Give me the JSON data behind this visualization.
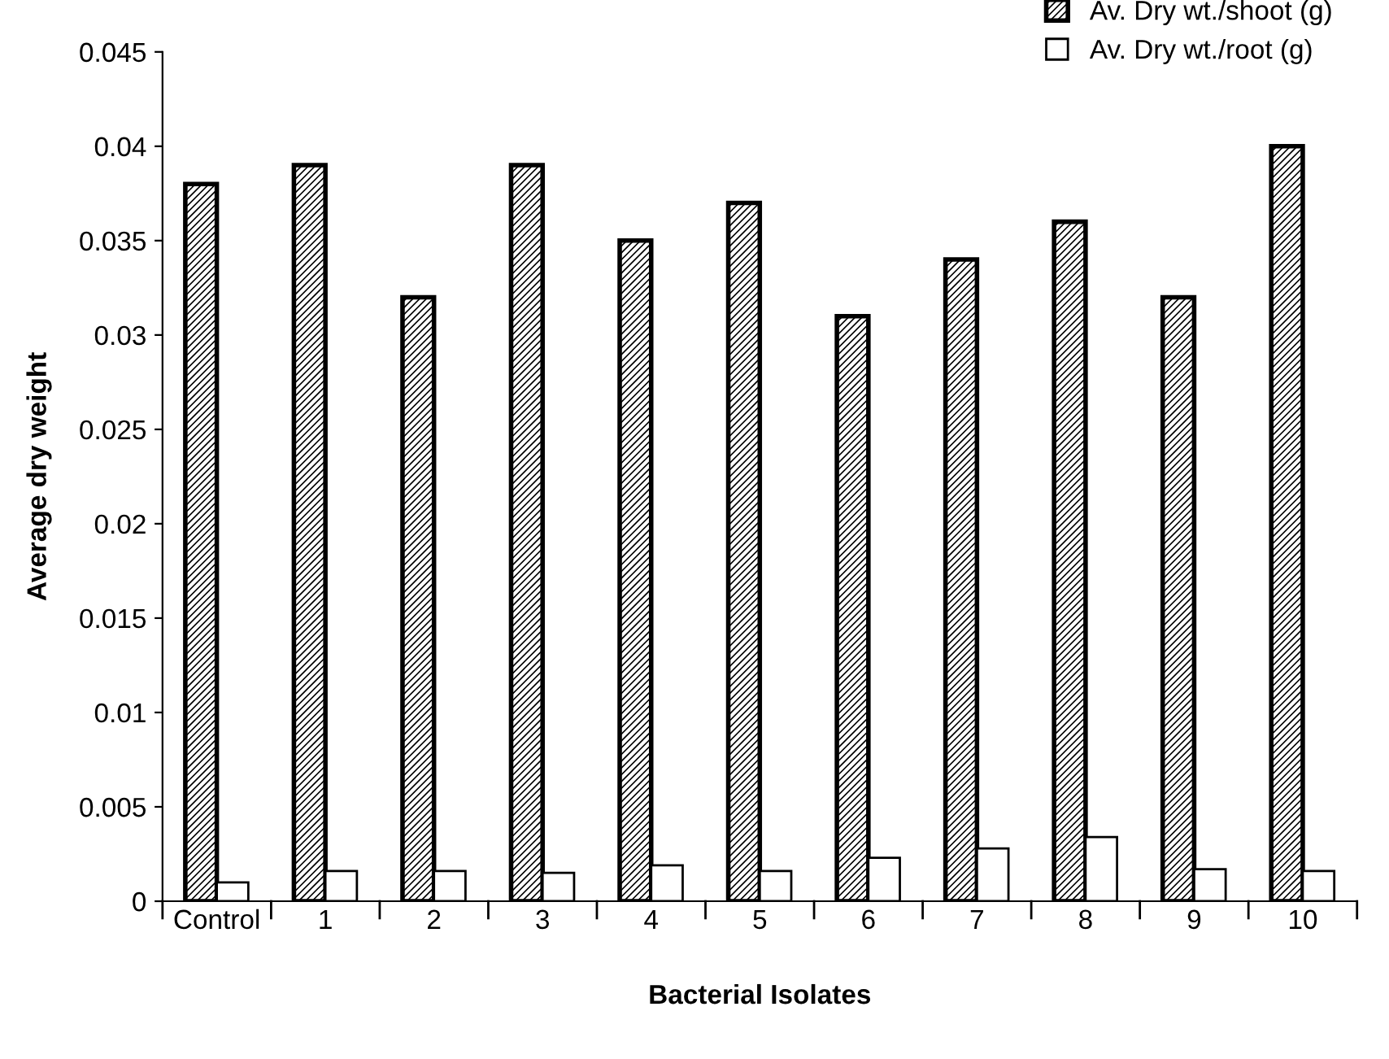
{
  "chart_data": {
    "type": "bar",
    "xlabel": "Bacterial Isolates",
    "ylabel": "Average dry weight",
    "categories": [
      "Control",
      "1",
      "2",
      "3",
      "4",
      "5",
      "6",
      "7",
      "8",
      "9",
      "10"
    ],
    "series": [
      {
        "name": "Av. Dry wt./shoot (g)",
        "color": "#000000",
        "values": [
          0.038,
          0.039,
          0.032,
          0.039,
          0.035,
          0.037,
          0.031,
          0.034,
          0.036,
          0.032,
          0.04
        ]
      },
      {
        "name": "Av. Dry wt./root (g)",
        "color": "#ffffff",
        "values": [
          0.001,
          0.0016,
          0.0016,
          0.0015,
          0.0019,
          0.0016,
          0.0023,
          0.0028,
          0.0034,
          0.0017,
          0.0016
        ]
      }
    ],
    "ylim": [
      0,
      0.045
    ],
    "yticks": [
      0,
      0.005,
      0.01,
      0.015,
      0.02,
      0.025,
      0.03,
      0.035,
      0.04,
      0.045
    ],
    "grid": false,
    "legend": "top right"
  }
}
